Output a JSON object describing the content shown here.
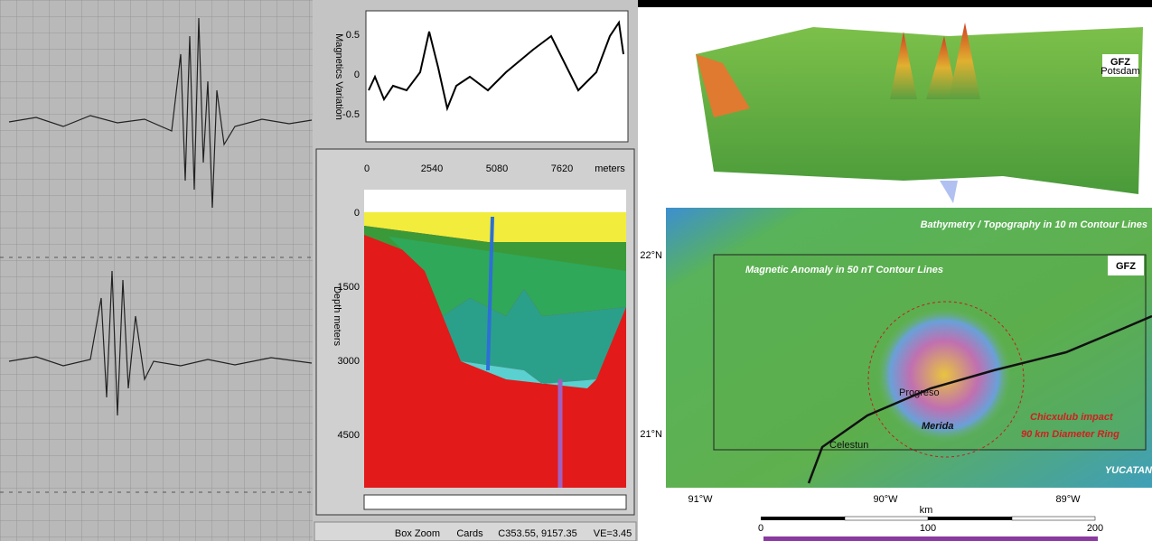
{
  "magnetics_panel": {
    "y_label": "Magnetics Variation",
    "y_ticks": [
      "0.5",
      "0",
      "-0.5"
    ]
  },
  "section_panel": {
    "x_ticks": [
      "0",
      "2540",
      "5080",
      "7620"
    ],
    "x_unit": "meters",
    "y_label": "Depth meters",
    "y_ticks": [
      "0",
      "1500",
      "3000",
      "4500"
    ]
  },
  "status_bar": [
    "Box Zoom",
    "Cards",
    "C353.55, 9157.35",
    "VE=3.45"
  ],
  "map": {
    "logo": "GFZ",
    "logo_sub": "Potsdam",
    "bathymetry_label": "Bathymetry / Topography in 10 m Contour Lines",
    "magnetic_label": "Magnetic Anomaly in 50 nT Contour Lines",
    "impact_label": "Chicxulub impact",
    "ring_label": "90 km Diameter Ring",
    "places": [
      "Merida",
      "Progreso",
      "Celestun"
    ],
    "region": "YUCATAN",
    "lat_labels": [
      "22°N",
      "21°N"
    ],
    "lon_labels": [
      "91°W",
      "90°W",
      "89°W"
    ],
    "scale_unit": "km",
    "scale_ticks": [
      "0",
      "100",
      "200"
    ]
  }
}
